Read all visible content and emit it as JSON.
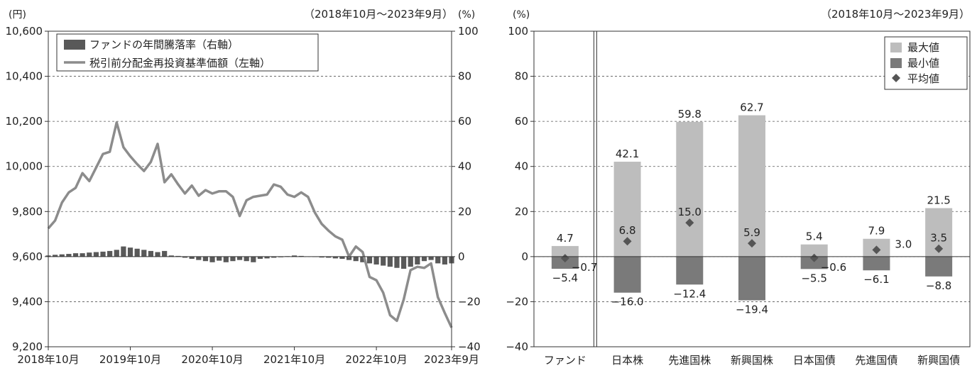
{
  "chart_data": [
    {
      "type": "line",
      "period": "（2018年10月～2023年9月）",
      "left_unit": "(円)",
      "right_unit": "(%)",
      "left_ylim": [
        9200,
        10600
      ],
      "left_ticks": [
        "10,600",
        "10,400",
        "10,200",
        "10,000",
        "9,800",
        "9,600",
        "9,400",
        "9,200"
      ],
      "right_ylim": [
        -40,
        100
      ],
      "right_ticks": [
        "100",
        "80",
        "60",
        "40",
        "20",
        "0",
        "−20",
        "−40"
      ],
      "x_ticks": [
        "2018年10月",
        "2019年10月",
        "2020年10月",
        "2021年10月",
        "2022年10月",
        "2023年9月"
      ],
      "grid": "horizontal dashed",
      "legend_position": "top-left",
      "colors": {
        "bars": "#595959",
        "line": "#8c8c8c"
      },
      "series": [
        {
          "name": "ファンドの年間騰落率（右軸）",
          "kind": "bar",
          "axis": "right",
          "values": [
            0.5,
            0.8,
            1.0,
            1.2,
            1.5,
            1.5,
            1.8,
            2.0,
            2.2,
            2.5,
            3.0,
            4.5,
            4.0,
            3.5,
            3.0,
            2.5,
            2.0,
            2.5,
            0.5,
            0.3,
            -0.5,
            -1.0,
            -1.5,
            -2.0,
            -2.5,
            -1.8,
            -2.5,
            -2.0,
            -1.5,
            -2.0,
            -2.5,
            -1.0,
            -0.8,
            -0.5,
            -0.3,
            0.2,
            0.5,
            0.3,
            0.1,
            -0.2,
            -0.4,
            -0.5,
            -0.8,
            -1.0,
            -1.5,
            -2.0,
            -2.5,
            -3.0,
            -3.5,
            -4.0,
            -4.5,
            -5.0,
            -5.4,
            -4.5,
            -3.5,
            -2.0,
            -1.5,
            -3.0,
            -3.5,
            -3.0
          ]
        },
        {
          "name": "税引前分配金再投資基準価額（左軸）",
          "kind": "line",
          "axis": "left",
          "values": [
            9725,
            9760,
            9840,
            9885,
            9905,
            9970,
            9935,
            9995,
            10055,
            10065,
            10195,
            10085,
            10045,
            10010,
            9980,
            10020,
            10100,
            9930,
            9965,
            9920,
            9880,
            9915,
            9870,
            9895,
            9880,
            9890,
            9890,
            9865,
            9780,
            9850,
            9865,
            9870,
            9875,
            9920,
            9910,
            9875,
            9865,
            9885,
            9865,
            9795,
            9745,
            9715,
            9690,
            9675,
            9600,
            9645,
            9620,
            9510,
            9495,
            9440,
            9340,
            9315,
            9410,
            9540,
            9555,
            9550,
            9570,
            9420,
            9350,
            9285
          ]
        }
      ]
    },
    {
      "type": "bar",
      "period": "（2018年10月～2023年9月）",
      "unit": "(%)",
      "ylim": [
        -40,
        100
      ],
      "y_ticks": [
        "100",
        "80",
        "60",
        "40",
        "20",
        "0",
        "−20",
        "−40"
      ],
      "categories": [
        "ファンド",
        "日本株",
        "先進国株",
        "新興国株",
        "日本国債",
        "先進国債",
        "新興国債"
      ],
      "grid": "horizontal dashed",
      "legend_position": "top-right",
      "colors": {
        "max": "#bdbdbd",
        "min": "#7a7a7a",
        "avg": "#555555"
      },
      "series": [
        {
          "name": "最大値",
          "values": [
            4.7,
            42.1,
            59.8,
            62.7,
            5.4,
            7.9,
            21.5
          ]
        },
        {
          "name": "最小値",
          "values": [
            -5.4,
            -16.0,
            -12.4,
            -19.4,
            -5.5,
            -6.1,
            -8.8
          ]
        },
        {
          "name": "平均値",
          "values": [
            -0.7,
            6.8,
            15.0,
            5.9,
            -0.6,
            3.0,
            3.5
          ]
        }
      ],
      "labels": {
        "max": [
          "4.7",
          "42.1",
          "59.8",
          "62.7",
          "5.4",
          "7.9",
          "21.5"
        ],
        "min": [
          "−5.4",
          "−16.0",
          "−12.4",
          "−19.4",
          "−5.5",
          "−6.1",
          "−8.8"
        ],
        "avg": [
          "−0.7",
          "6.8",
          "15.0",
          "5.9",
          "−0.6",
          "3.0",
          "3.5"
        ]
      }
    }
  ]
}
